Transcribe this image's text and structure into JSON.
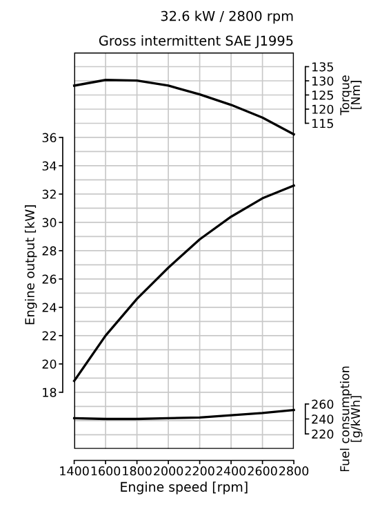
{
  "chart_data": {
    "type": "line",
    "title": "32.6 kW / 2800 rpm",
    "subtitle": "Gross intermittent SAE J1995",
    "xlabel": "Engine speed [rpm]",
    "ylabel": "Engine output [kW]",
    "y2label": "Torque\n[Nm]",
    "y3label": "Fuel consumption\n[g/kWh]",
    "x": [
      1400,
      1600,
      1800,
      2000,
      2200,
      2400,
      2600,
      2800
    ],
    "series": [
      {
        "color": "#000000",
        "values": [
          18.8,
          22.0,
          24.6,
          26.8,
          28.8,
          30.4,
          31.7,
          32.6
        ]
      },
      {
        "color": "#000000",
        "axis": "y2",
        "values": [
          128.3,
          130.3,
          130.1,
          128.3,
          125.2,
          121.5,
          117.0,
          111.1
        ]
      },
      {
        "color": "#000000",
        "axis": "y3",
        "values": [
          241,
          240,
          240,
          241,
          242,
          245,
          248,
          252
        ]
      }
    ],
    "xlim": [
      1400,
      2800
    ],
    "xticks": [
      1400,
      1600,
      1800,
      2000,
      2200,
      2400,
      2600,
      2800
    ],
    "ylim": [
      14,
      42
    ],
    "yticks": [
      {
        "value": 15,
        "label": null
      },
      {
        "value": 16,
        "label": null
      },
      {
        "value": 17,
        "label": null
      },
      18,
      {
        "value": 19,
        "label": null
      },
      20,
      {
        "value": 21,
        "label": null
      },
      22,
      {
        "value": 23,
        "label": null
      },
      24,
      {
        "value": 25,
        "label": null
      },
      26,
      {
        "value": 27,
        "label": null
      },
      28,
      {
        "value": 29,
        "label": null
      },
      30,
      {
        "value": 31,
        "label": null
      },
      32,
      {
        "value": 33,
        "label": null
      },
      34,
      {
        "value": 35,
        "label": null
      },
      36,
      {
        "value": 37,
        "label": null
      },
      {
        "value": 38,
        "label": null
      },
      {
        "value": 39,
        "label": null
      },
      {
        "value": 40,
        "label": null
      },
      {
        "value": 41,
        "label": null
      }
    ],
    "y2lim": [
      0,
      140
    ],
    "y2ticks": [
      115,
      120,
      125,
      130,
      135
    ],
    "y3lim": [
      200,
      730
    ],
    "y3ticks": [
      220,
      240,
      260
    ],
    "grid": true,
    "line_style": "solid",
    "marker": "none"
  }
}
